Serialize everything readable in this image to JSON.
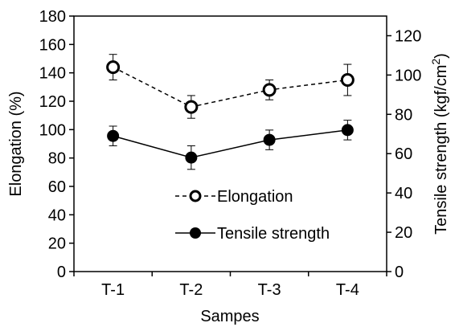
{
  "chart_data": {
    "type": "line",
    "categories": [
      "T-1",
      "T-2",
      "T-3",
      "T-4"
    ],
    "xlabel": "Sampes",
    "y_left": {
      "label": "Elongation (%)",
      "ylim": [
        0,
        180
      ],
      "ticks": [
        0,
        20,
        40,
        60,
        80,
        100,
        120,
        140,
        160,
        180
      ]
    },
    "y_right": {
      "label_main": "Tensile strength (kgf/cm",
      "label_sup": "2",
      "label_close": ")",
      "ylim": [
        0,
        130
      ],
      "ticks": [
        0,
        20,
        40,
        60,
        80,
        100,
        120
      ]
    },
    "series": [
      {
        "name": "Elongation",
        "axis": "left",
        "values": [
          144,
          116,
          128,
          135
        ],
        "error": [
          9,
          8,
          7,
          11
        ],
        "line_style": "dashed",
        "marker": "open-circle"
      },
      {
        "name": "Tensile strength",
        "axis": "right",
        "values": [
          69,
          58,
          67,
          72
        ],
        "error": [
          5,
          6,
          5,
          5
        ],
        "line_style": "solid",
        "marker": "filled-circle"
      }
    ],
    "grid": false,
    "legend_position": "bottom-center"
  }
}
